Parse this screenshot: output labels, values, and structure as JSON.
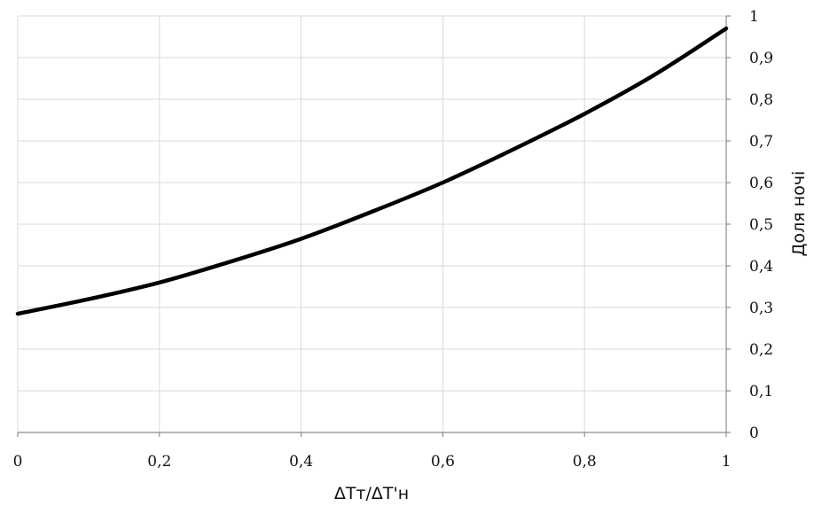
{
  "chart_data": {
    "type": "line",
    "title": "",
    "xlabel": "ΔTт/ΔT'н",
    "ylabel": "Доля ночі",
    "xlim": [
      0,
      1
    ],
    "ylim": [
      0,
      1
    ],
    "x_tick_labels": [
      "0",
      "0,2",
      "0,4",
      "0,6",
      "0,8",
      "1"
    ],
    "y_tick_labels": [
      "0",
      "0,1",
      "0,2",
      "0,3",
      "0,4",
      "0,5",
      "0,6",
      "0,7",
      "0,8",
      "0,9",
      "1"
    ],
    "y_axis_side": "right",
    "grid": true,
    "legend": "none",
    "line_color": "#000000",
    "series": [
      {
        "x": [
          0,
          0.1,
          0.2,
          0.3,
          0.4,
          0.5,
          0.6,
          0.7,
          0.8,
          0.9,
          1.0
        ],
        "values": [
          0.285,
          0.32,
          0.36,
          0.41,
          0.465,
          0.53,
          0.6,
          0.68,
          0.765,
          0.86,
          0.97
        ]
      }
    ]
  }
}
